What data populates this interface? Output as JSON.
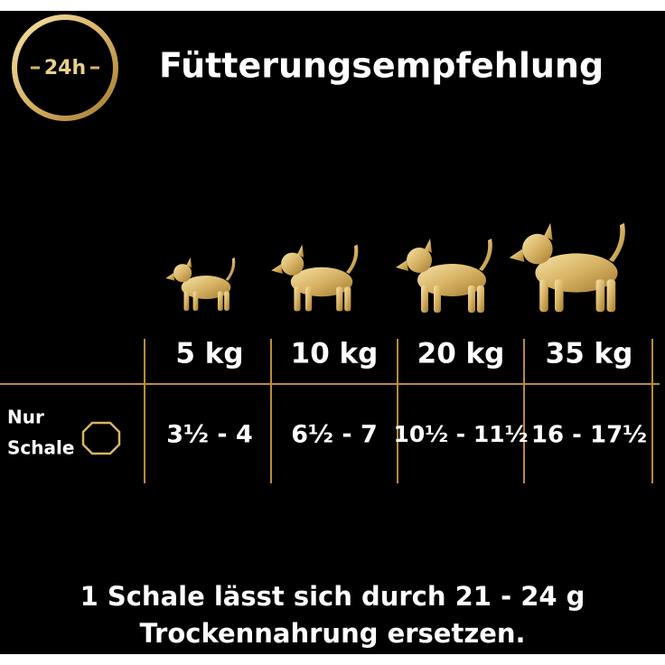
{
  "header": {
    "badge": "24h",
    "title": "Fütterungsempfehlung"
  },
  "table": {
    "columns": [
      "5 kg",
      "10 kg",
      "20 kg",
      "35 kg"
    ],
    "rows": [
      {
        "label": [
          "Nur",
          "Schale"
        ],
        "cells": [
          "3½ - 4",
          "6½ - 7",
          "10½ - 11½",
          "16 - 17½"
        ]
      }
    ]
  },
  "footer": [
    "1 Schale lässt sich durch 21 - 24 g",
    "Trockennahrung ersetzen."
  ]
}
